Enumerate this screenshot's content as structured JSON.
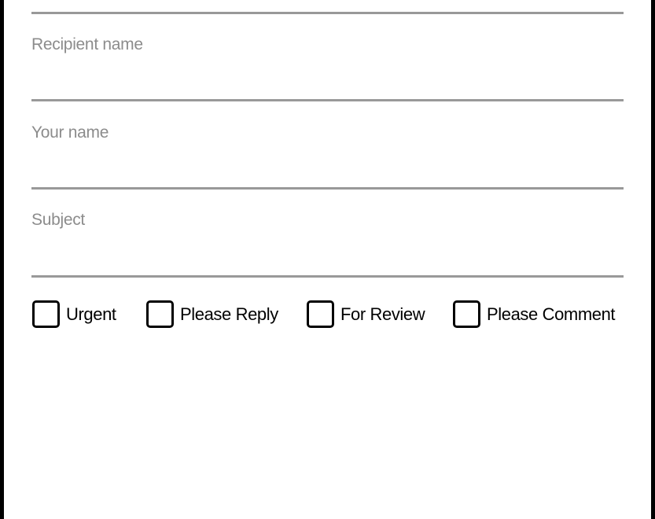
{
  "form": {
    "fields": [
      {
        "label": "Recipient name",
        "value": ""
      },
      {
        "label": "Your name",
        "value": ""
      },
      {
        "label": "Subject",
        "value": ""
      }
    ],
    "checkboxes": [
      {
        "label": "Urgent",
        "checked": false
      },
      {
        "label": "Please Reply",
        "checked": false
      },
      {
        "label": "For Review",
        "checked": false
      },
      {
        "label": "Please Comment",
        "checked": false
      }
    ]
  }
}
